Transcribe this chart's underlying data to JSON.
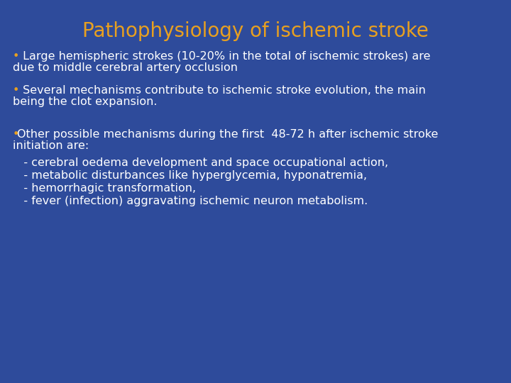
{
  "title": "Pathophysiology of ischemic stroke",
  "title_color": "#E8A020",
  "title_fontsize": 20,
  "background_color": "#2E4B9B",
  "text_color": "#FFFFFF",
  "bullet_color": "#E8A020",
  "bullet1_line1": " Large hemispheric strokes (10-20% in the total of ischemic strokes) are",
  "bullet1_line2": "due to middle cerebral artery occlusion",
  "bullet2_line1": " Several mechanisms contribute to ischemic stroke evolution, the main",
  "bullet2_line2": "being the clot expansion.",
  "bullet3_line1": "Other possible mechanisms during the first  48-72 h after ischemic stroke",
  "bullet3_line2": "initiation are:",
  "bullet3_items": [
    "   - cerebral oedema development and space occupational action,",
    "   - metabolic disturbances like hyperglycemia, hyponatremia,",
    "   - hemorrhagic transformation,",
    "   - fever (infection) aggravating ischemic neuron metabolism."
  ],
  "body_fontsize": 11.5,
  "figsize": [
    7.2,
    5.4
  ],
  "dpi": 100
}
